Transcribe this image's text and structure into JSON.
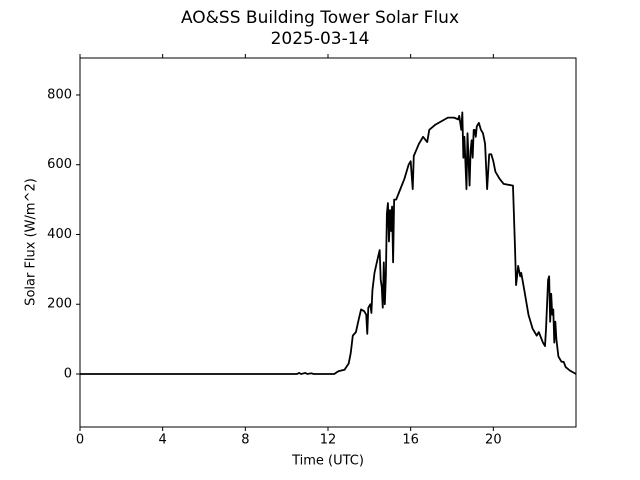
{
  "chart_data": {
    "type": "line",
    "title": "AO&SS Building Tower Solar Flux",
    "subtitle": "2025-03-14",
    "x_label": "Time (UTC)",
    "y_label": "Solar Flux (W/m^2)",
    "color": "#000000",
    "xlim": [
      0,
      24
    ],
    "xticks": [
      0,
      4,
      8,
      12,
      16,
      20
    ],
    "ylim": [
      -152,
      906
    ],
    "yticks": [
      0,
      200,
      400,
      600,
      800
    ],
    "grid": false,
    "x": [
      0,
      10.5,
      10.6,
      10.7,
      10.9,
      11,
      11.2,
      11.3,
      12.3,
      12.5,
      12.8,
      13.0,
      13.1,
      13.2,
      13.35,
      13.5,
      13.6,
      13.75,
      13.85,
      13.9,
      13.95,
      14.05,
      14.1,
      14.15,
      14.25,
      14.4,
      14.5,
      14.55,
      14.6,
      14.65,
      14.7,
      14.75,
      14.8,
      14.85,
      14.9,
      14.95,
      15.0,
      15.05,
      15.1,
      15.15,
      15.2,
      15.3,
      15.5,
      15.7,
      15.9,
      16.0,
      16.1,
      16.15,
      16.4,
      16.6,
      16.8,
      16.9,
      17.2,
      17.5,
      17.8,
      18.1,
      18.3,
      18.35,
      18.45,
      18.5,
      18.55,
      18.6,
      18.7,
      18.75,
      18.85,
      18.9,
      18.95,
      19.0,
      19.05,
      19.1,
      19.15,
      19.2,
      19.3,
      19.4,
      19.5,
      19.6,
      19.7,
      19.8,
      19.9,
      20.0,
      20.1,
      20.3,
      20.5,
      20.95,
      21.05,
      21.1,
      21.15,
      21.2,
      21.3,
      21.35,
      21.5,
      21.7,
      21.9,
      22.1,
      22.2,
      22.4,
      22.5,
      22.55,
      22.65,
      22.7,
      22.75,
      22.8,
      22.85,
      22.9,
      22.95,
      23.0,
      23.05,
      23.15,
      23.3,
      23.4,
      23.5,
      23.7,
      24
    ],
    "values": [
      0,
      0,
      3,
      0,
      3,
      0,
      2,
      0,
      0,
      8,
      12,
      30,
      60,
      110,
      120,
      160,
      185,
      180,
      170,
      115,
      190,
      200,
      175,
      240,
      290,
      330,
      355,
      270,
      250,
      190,
      320,
      200,
      280,
      460,
      490,
      380,
      470,
      410,
      480,
      320,
      500,
      500,
      530,
      560,
      600,
      610,
      530,
      625,
      660,
      680,
      665,
      700,
      715,
      725,
      735,
      735,
      730,
      740,
      700,
      750,
      620,
      680,
      530,
      690,
      540,
      640,
      670,
      620,
      700,
      700,
      680,
      710,
      720,
      700,
      690,
      660,
      530,
      630,
      630,
      610,
      580,
      560,
      545,
      540,
      360,
      255,
      280,
      310,
      280,
      290,
      240,
      170,
      130,
      110,
      120,
      90,
      80,
      130,
      270,
      280,
      150,
      230,
      170,
      185,
      90,
      150,
      100,
      50,
      35,
      35,
      20,
      10,
      0
    ]
  }
}
